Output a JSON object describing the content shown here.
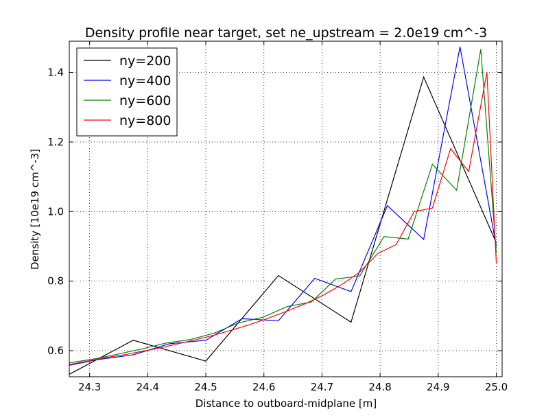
{
  "chart_data": {
    "type": "line",
    "title": "Density profile near target, set ne_upstream = 2.0e19 cm^-3",
    "xlabel": "Distance to outboard-midplane [m]",
    "ylabel": "Density [10e19 cm^-3]",
    "xlim": [
      24.265,
      25.01
    ],
    "ylim": [
      0.525,
      1.49
    ],
    "xticks": [
      "24.3",
      "24.4",
      "24.5",
      "24.6",
      "24.7",
      "24.8",
      "24.9",
      "25.0"
    ],
    "yticks": [
      "0.6",
      "0.8",
      "1.0",
      "1.2",
      "1.4"
    ],
    "grid": true,
    "legend_position": "top-left",
    "series": [
      {
        "name": "ny=200",
        "color": "#000000",
        "x": [
          24.265,
          24.375,
          24.5,
          24.625,
          24.75,
          24.875,
          25.0
        ],
        "y": [
          0.532,
          0.63,
          0.57,
          0.816,
          0.682,
          1.387,
          0.91
        ]
      },
      {
        "name": "ny=400",
        "color": "#0000ff",
        "x": [
          24.265,
          24.3125,
          24.375,
          24.4375,
          24.5,
          24.5625,
          24.625,
          24.6875,
          24.75,
          24.8125,
          24.875,
          24.9375,
          25.0
        ],
        "y": [
          0.558,
          0.574,
          0.588,
          0.62,
          0.63,
          0.692,
          0.686,
          0.808,
          0.77,
          1.017,
          0.92,
          1.474,
          0.9
        ]
      },
      {
        "name": "ny=600",
        "color": "#008000",
        "x": [
          24.265,
          24.3067,
          24.3483,
          24.39,
          24.4317,
          24.4733,
          24.515,
          24.5567,
          24.5983,
          24.64,
          24.6817,
          24.7233,
          24.765,
          24.8067,
          24.8483,
          24.89,
          24.9317,
          24.9733,
          25.0
        ],
        "y": [
          0.565,
          0.576,
          0.59,
          0.605,
          0.622,
          0.632,
          0.651,
          0.68,
          0.696,
          0.727,
          0.74,
          0.806,
          0.815,
          0.928,
          0.921,
          1.136,
          1.061,
          1.467,
          0.88
        ]
      },
      {
        "name": "ny=800",
        "color": "#ff0000",
        "x": [
          24.265,
          24.2963,
          24.3275,
          24.3588,
          24.39,
          24.4213,
          24.4525,
          24.4838,
          24.515,
          24.5463,
          24.5775,
          24.6088,
          24.64,
          24.6713,
          24.7025,
          24.7338,
          24.765,
          24.7963,
          24.8275,
          24.8588,
          24.89,
          24.9213,
          24.9525,
          24.9838,
          25.0
        ],
        "y": [
          0.56,
          0.57,
          0.58,
          0.588,
          0.598,
          0.608,
          0.62,
          0.632,
          0.645,
          0.66,
          0.676,
          0.694,
          0.714,
          0.735,
          0.76,
          0.79,
          0.826,
          0.88,
          0.905,
          1.0,
          1.01,
          1.181,
          1.115,
          1.401,
          0.852
        ]
      }
    ]
  }
}
